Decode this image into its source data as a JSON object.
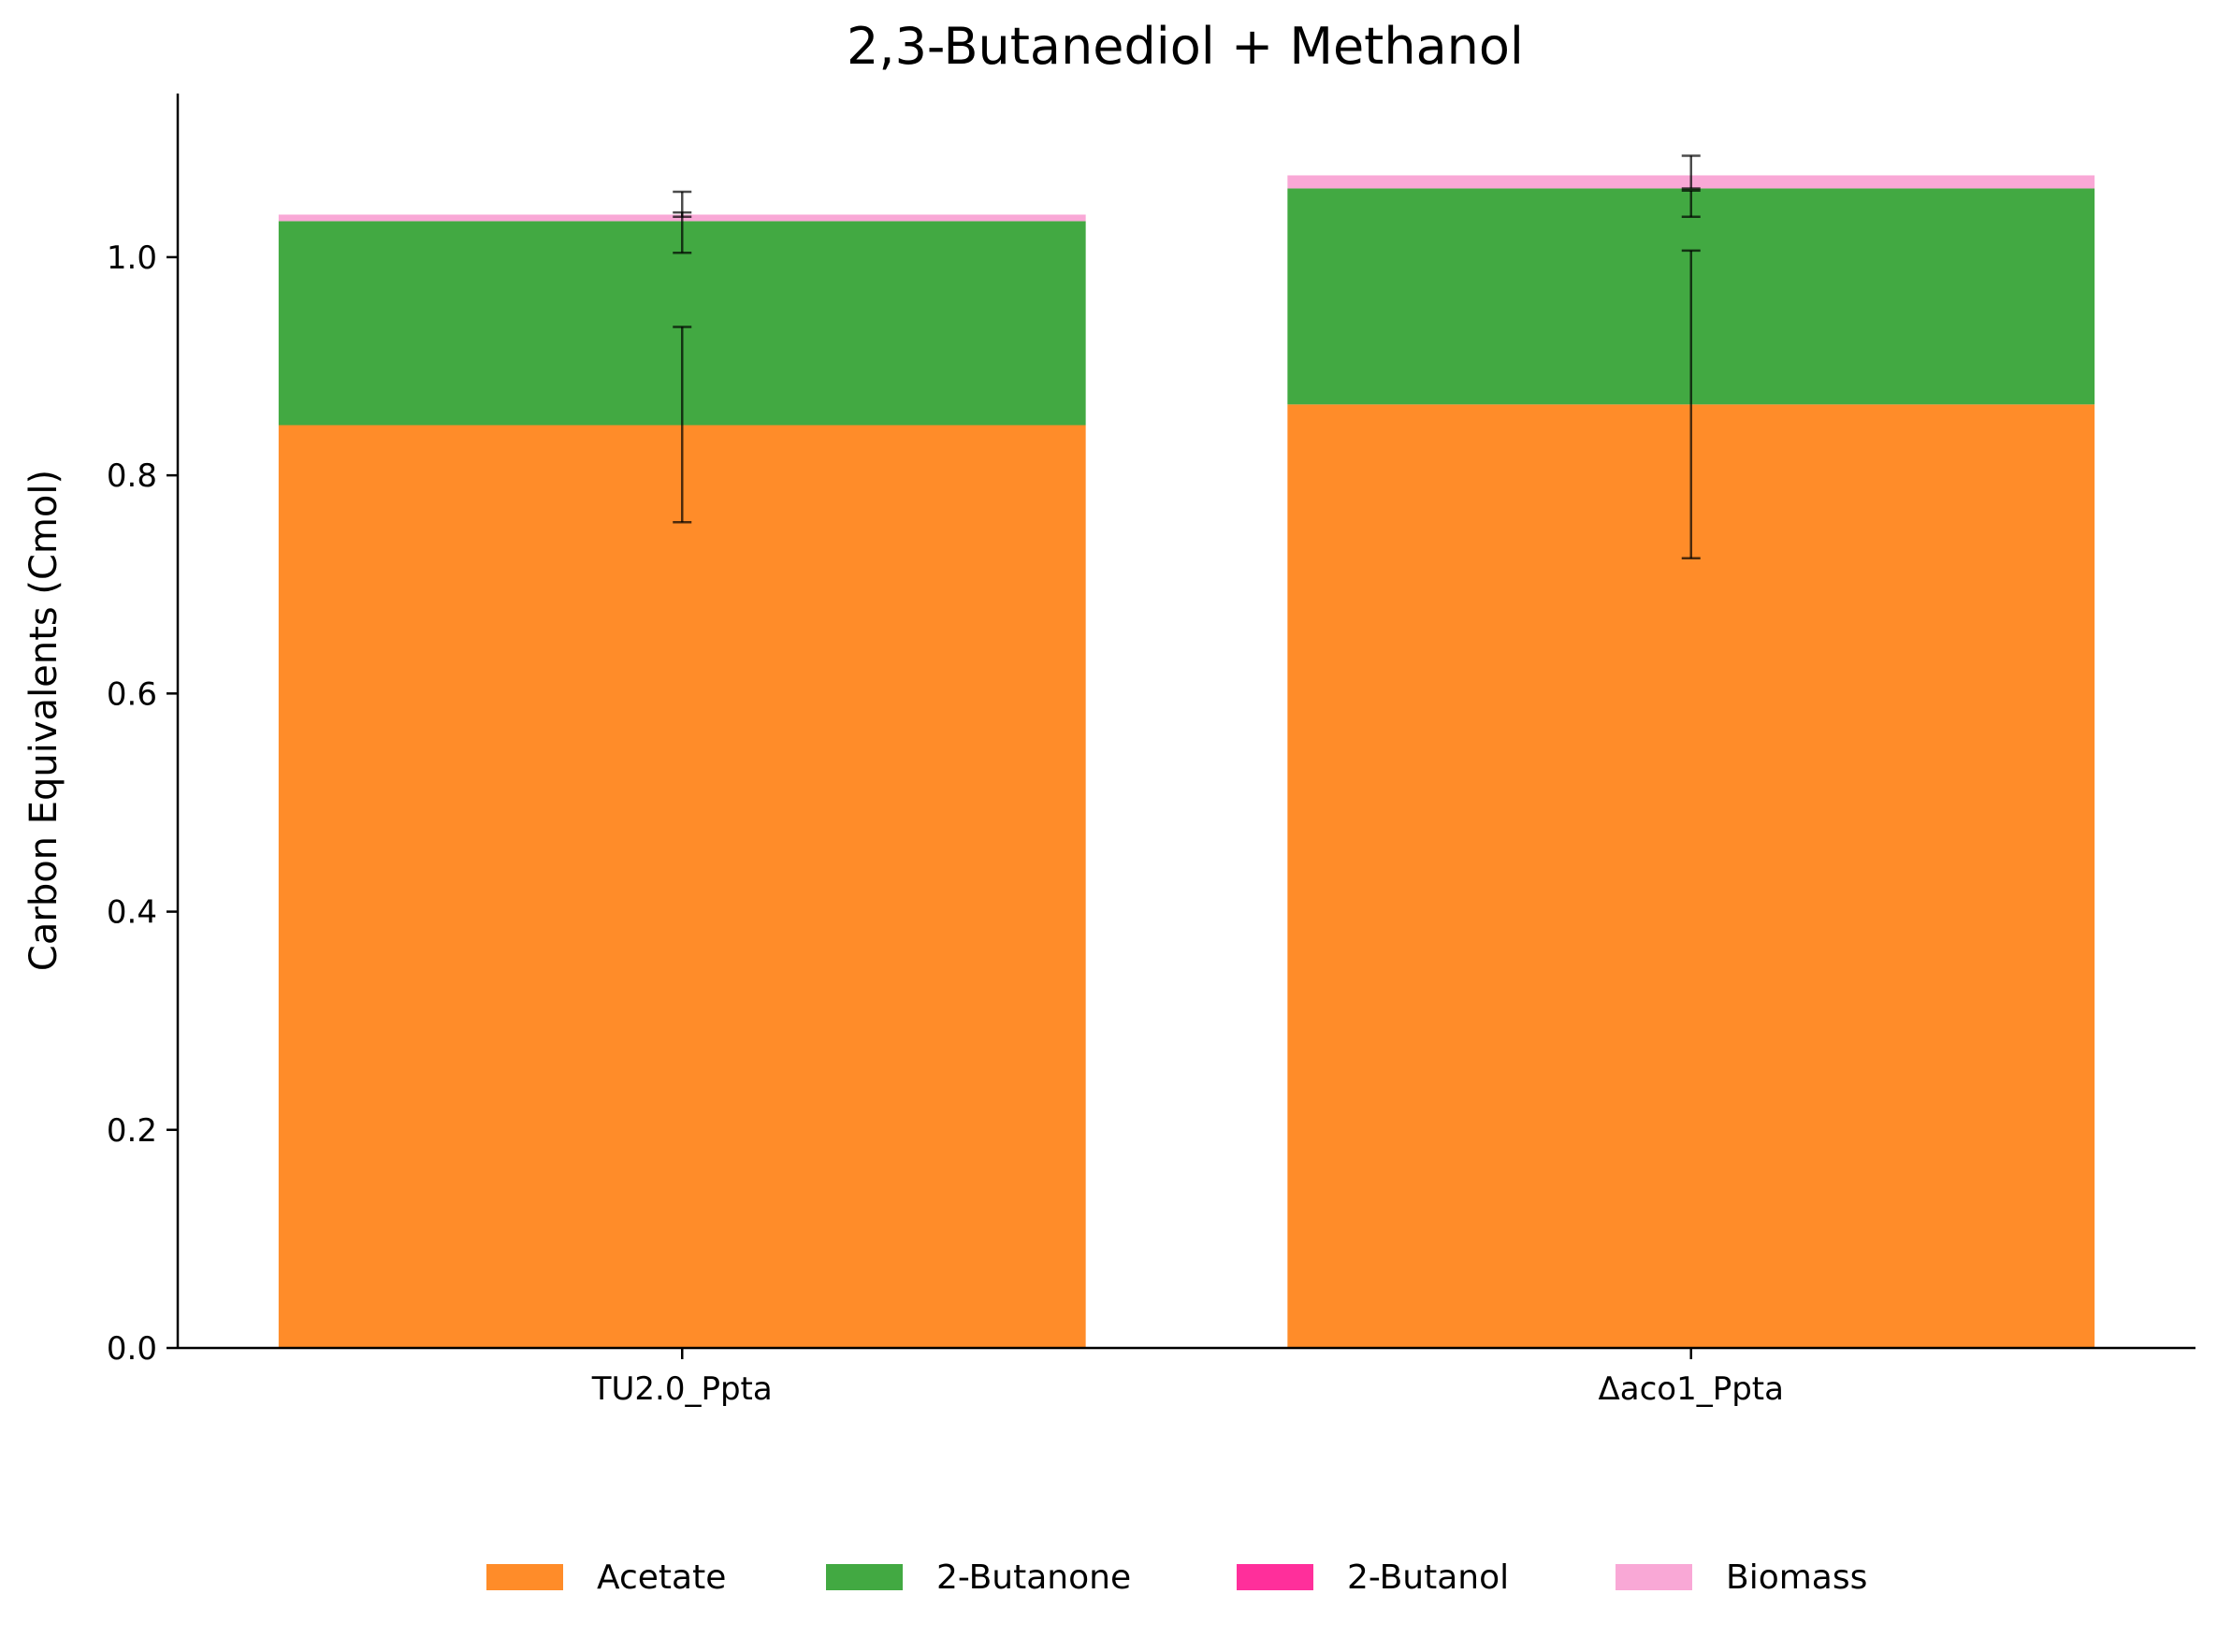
{
  "chart_data": {
    "type": "bar",
    "stacked": true,
    "title": "2,3-Butanediol + Methanol",
    "xlabel": "",
    "ylabel": "Carbon Equivalents (Cmol)",
    "ylim": [
      0,
      1.15
    ],
    "yticks": [
      0.0,
      0.2,
      0.4,
      0.6,
      0.8,
      1.0
    ],
    "ytick_labels": [
      "0.0",
      "0.2",
      "0.4",
      "0.6",
      "0.8",
      "1.0"
    ],
    "categories": [
      "TU2.0_Ppta",
      "Δaco1_Ppta"
    ],
    "series": [
      {
        "name": "Acetate",
        "color": "#ff8c29",
        "values": [
          0.846,
          0.865
        ],
        "error_low": [
          0.757,
          0.724
        ],
        "error_high": [
          0.936,
          1.006
        ]
      },
      {
        "name": "2-Butanone",
        "color": "#42a942",
        "values": [
          0.187,
          0.198
        ],
        "error_low": [
          1.004,
          1.037
        ],
        "error_high": [
          1.041,
          1.061
        ]
      },
      {
        "name": "2-Butanol",
        "color": "#ff2f9b",
        "values": [
          0.0,
          0.0
        ]
      },
      {
        "name": "Biomass",
        "color": "#f9a8d6",
        "values": [
          0.006,
          0.012
        ],
        "error_low": [
          1.037,
          1.063
        ],
        "error_high": [
          1.06,
          1.093
        ]
      }
    ],
    "grid": false,
    "legend_position": "bottom-center"
  }
}
